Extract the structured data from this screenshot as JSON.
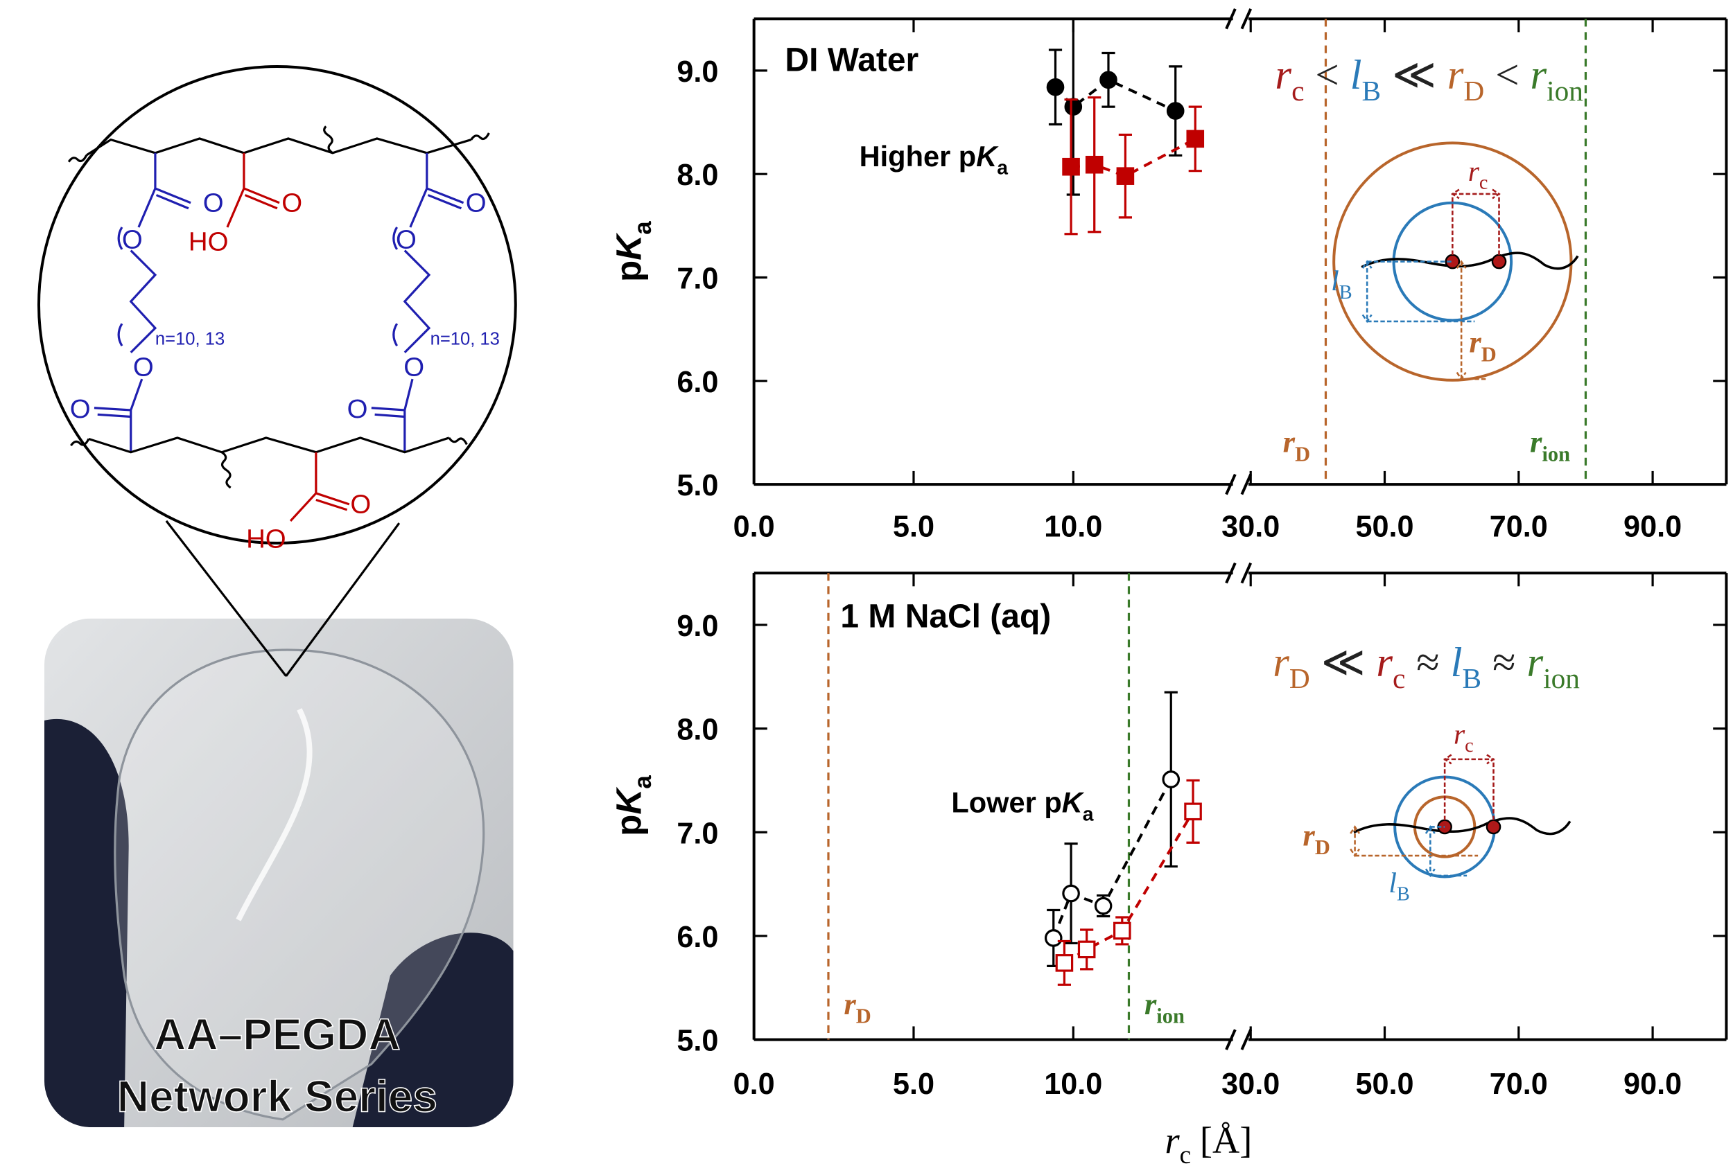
{
  "figure": {
    "photo_caption": [
      "AA–PEGDA",
      "Network Series"
    ],
    "structure": {
      "labels": [
        "O",
        "O",
        "HO",
        "O",
        "O",
        "O",
        "n=10, 13",
        "n=10, 13",
        "O",
        "O",
        "O",
        "O",
        "O",
        "HO"
      ]
    }
  },
  "chart_data": [
    {
      "type": "scatter",
      "title": "DI Water",
      "annotation": {
        "text": "Higher p",
        "italic": "K",
        "sub": "a"
      },
      "ylabel": {
        "text": "p",
        "italic": "K",
        "sub": "a"
      },
      "ylim": [
        5,
        9.5
      ],
      "yticks": [
        {
          "value": 5,
          "label": "5.0"
        },
        {
          "value": 6,
          "label": "6.0"
        },
        {
          "value": 7,
          "label": "7.0"
        },
        {
          "value": 8,
          "label": "8.0"
        },
        {
          "value": 9,
          "label": "9.0"
        }
      ],
      "x_segments": [
        {
          "xlim": [
            0,
            15
          ],
          "xticks": [
            {
              "value": 0,
              "label": "0.0"
            },
            {
              "value": 5,
              "label": "5.0"
            },
            {
              "value": 10,
              "label": "10.0"
            }
          ]
        },
        {
          "xlim": [
            30,
            101
          ],
          "xticks": [
            {
              "value": 30,
              "label": "30.0"
            },
            {
              "value": 50,
              "label": "50.0"
            },
            {
              "value": 70,
              "label": "70.0"
            },
            {
              "value": 90,
              "label": "90.0"
            }
          ]
        }
      ],
      "series": [
        {
          "color": "#000000",
          "marker": "circle",
          "filled": true,
          "x": [
            9.44,
            10.0,
            11.1,
            13.2
          ],
          "values": [
            8.84,
            8.65,
            8.91,
            8.61
          ],
          "errors": [
            0.36,
            0.85,
            0.26,
            0.43
          ]
        },
        {
          "color": "#c00000",
          "marker": "square",
          "filled": true,
          "x": [
            9.93,
            10.66,
            11.63,
            13.82
          ],
          "values": [
            8.07,
            8.09,
            7.98,
            8.34
          ],
          "errors": [
            0.65,
            0.65,
            0.4,
            0.31
          ]
        }
      ],
      "vlines": [
        {
          "x": 41.2,
          "color": "#b8652b",
          "label": {
            "sym": "r",
            "sub": "D"
          }
        },
        {
          "x": 80,
          "color": "#3a7a2a",
          "label": {
            "sym": "r",
            "sub": "ion"
          }
        }
      ],
      "relation": [
        {
          "sym": "r",
          "sub": "c",
          "color": "#a51b1b"
        },
        {
          "op": "<"
        },
        {
          "sym": "l",
          "sub": "B",
          "color": "#2a7ab8"
        },
        {
          "op": "≪"
        },
        {
          "sym": "r",
          "sub": "D",
          "color": "#b8652b"
        },
        {
          "op": "<"
        },
        {
          "sym": "r",
          "sub": "ion",
          "color": "#3a7a2a"
        }
      ],
      "inset_labels": [
        {
          "sym": "r",
          "sub": "c"
        },
        {
          "sym": "l",
          "sub": "B"
        },
        {
          "sym": "r",
          "sub": "D"
        }
      ]
    },
    {
      "type": "scatter",
      "title": "1 M NaCl (aq)",
      "annotation": {
        "text": "Lower p",
        "italic": "K",
        "sub": "a"
      },
      "ylabel": {
        "text": "p",
        "italic": "K",
        "sub": "a"
      },
      "xlabel": {
        "sym": "r",
        "sub": "c",
        "text": "[Å]"
      },
      "ylim": [
        5,
        9.5
      ],
      "yticks": [
        {
          "value": 5,
          "label": "5.0"
        },
        {
          "value": 6,
          "label": "6.0"
        },
        {
          "value": 7,
          "label": "7.0"
        },
        {
          "value": 8,
          "label": "8.0"
        },
        {
          "value": 9,
          "label": "9.0"
        }
      ],
      "x_segments": [
        {
          "xlim": [
            0,
            15
          ],
          "xticks": [
            {
              "value": 0,
              "label": "0.0"
            },
            {
              "value": 5,
              "label": "5.0"
            },
            {
              "value": 10,
              "label": "10.0"
            }
          ]
        },
        {
          "xlim": [
            30,
            101
          ],
          "xticks": [
            {
              "value": 30,
              "label": "30.0"
            },
            {
              "value": 50,
              "label": "50.0"
            },
            {
              "value": 70,
              "label": "70.0"
            },
            {
              "value": 90,
              "label": "90.0"
            }
          ]
        }
      ],
      "series": [
        {
          "color": "#000000",
          "marker": "circle",
          "filled": false,
          "x": [
            9.38,
            9.93,
            10.94,
            13.06
          ],
          "values": [
            5.98,
            6.41,
            6.29,
            7.51
          ],
          "errors": [
            0.27,
            0.48,
            0.1,
            0.84
          ]
        },
        {
          "color": "#c00000",
          "marker": "square",
          "filled": false,
          "x": [
            9.72,
            10.42,
            11.53,
            13.75
          ],
          "values": [
            5.74,
            5.87,
            6.05,
            7.2
          ],
          "errors": [
            0.21,
            0.19,
            0.13,
            0.3
          ]
        }
      ],
      "vlines": [
        {
          "x": 2.33,
          "color": "#b8652b",
          "label": {
            "sym": "r",
            "sub": "D"
          }
        },
        {
          "x": 11.74,
          "color": "#3a7a2a",
          "label": {
            "sym": "r",
            "sub": "ion"
          }
        }
      ],
      "relation": [
        {
          "sym": "r",
          "sub": "D",
          "color": "#b8652b"
        },
        {
          "op": "≪"
        },
        {
          "sym": "r",
          "sub": "c",
          "color": "#a51b1b"
        },
        {
          "op": "≈"
        },
        {
          "sym": "l",
          "sub": "B",
          "color": "#2a7ab8"
        },
        {
          "op": "≈"
        },
        {
          "sym": "r",
          "sub": "ion",
          "color": "#3a7a2a"
        }
      ],
      "inset_labels": [
        {
          "sym": "r",
          "sub": "c"
        },
        {
          "sym": "l",
          "sub": "B"
        },
        {
          "sym": "r",
          "sub": "D"
        }
      ]
    }
  ]
}
